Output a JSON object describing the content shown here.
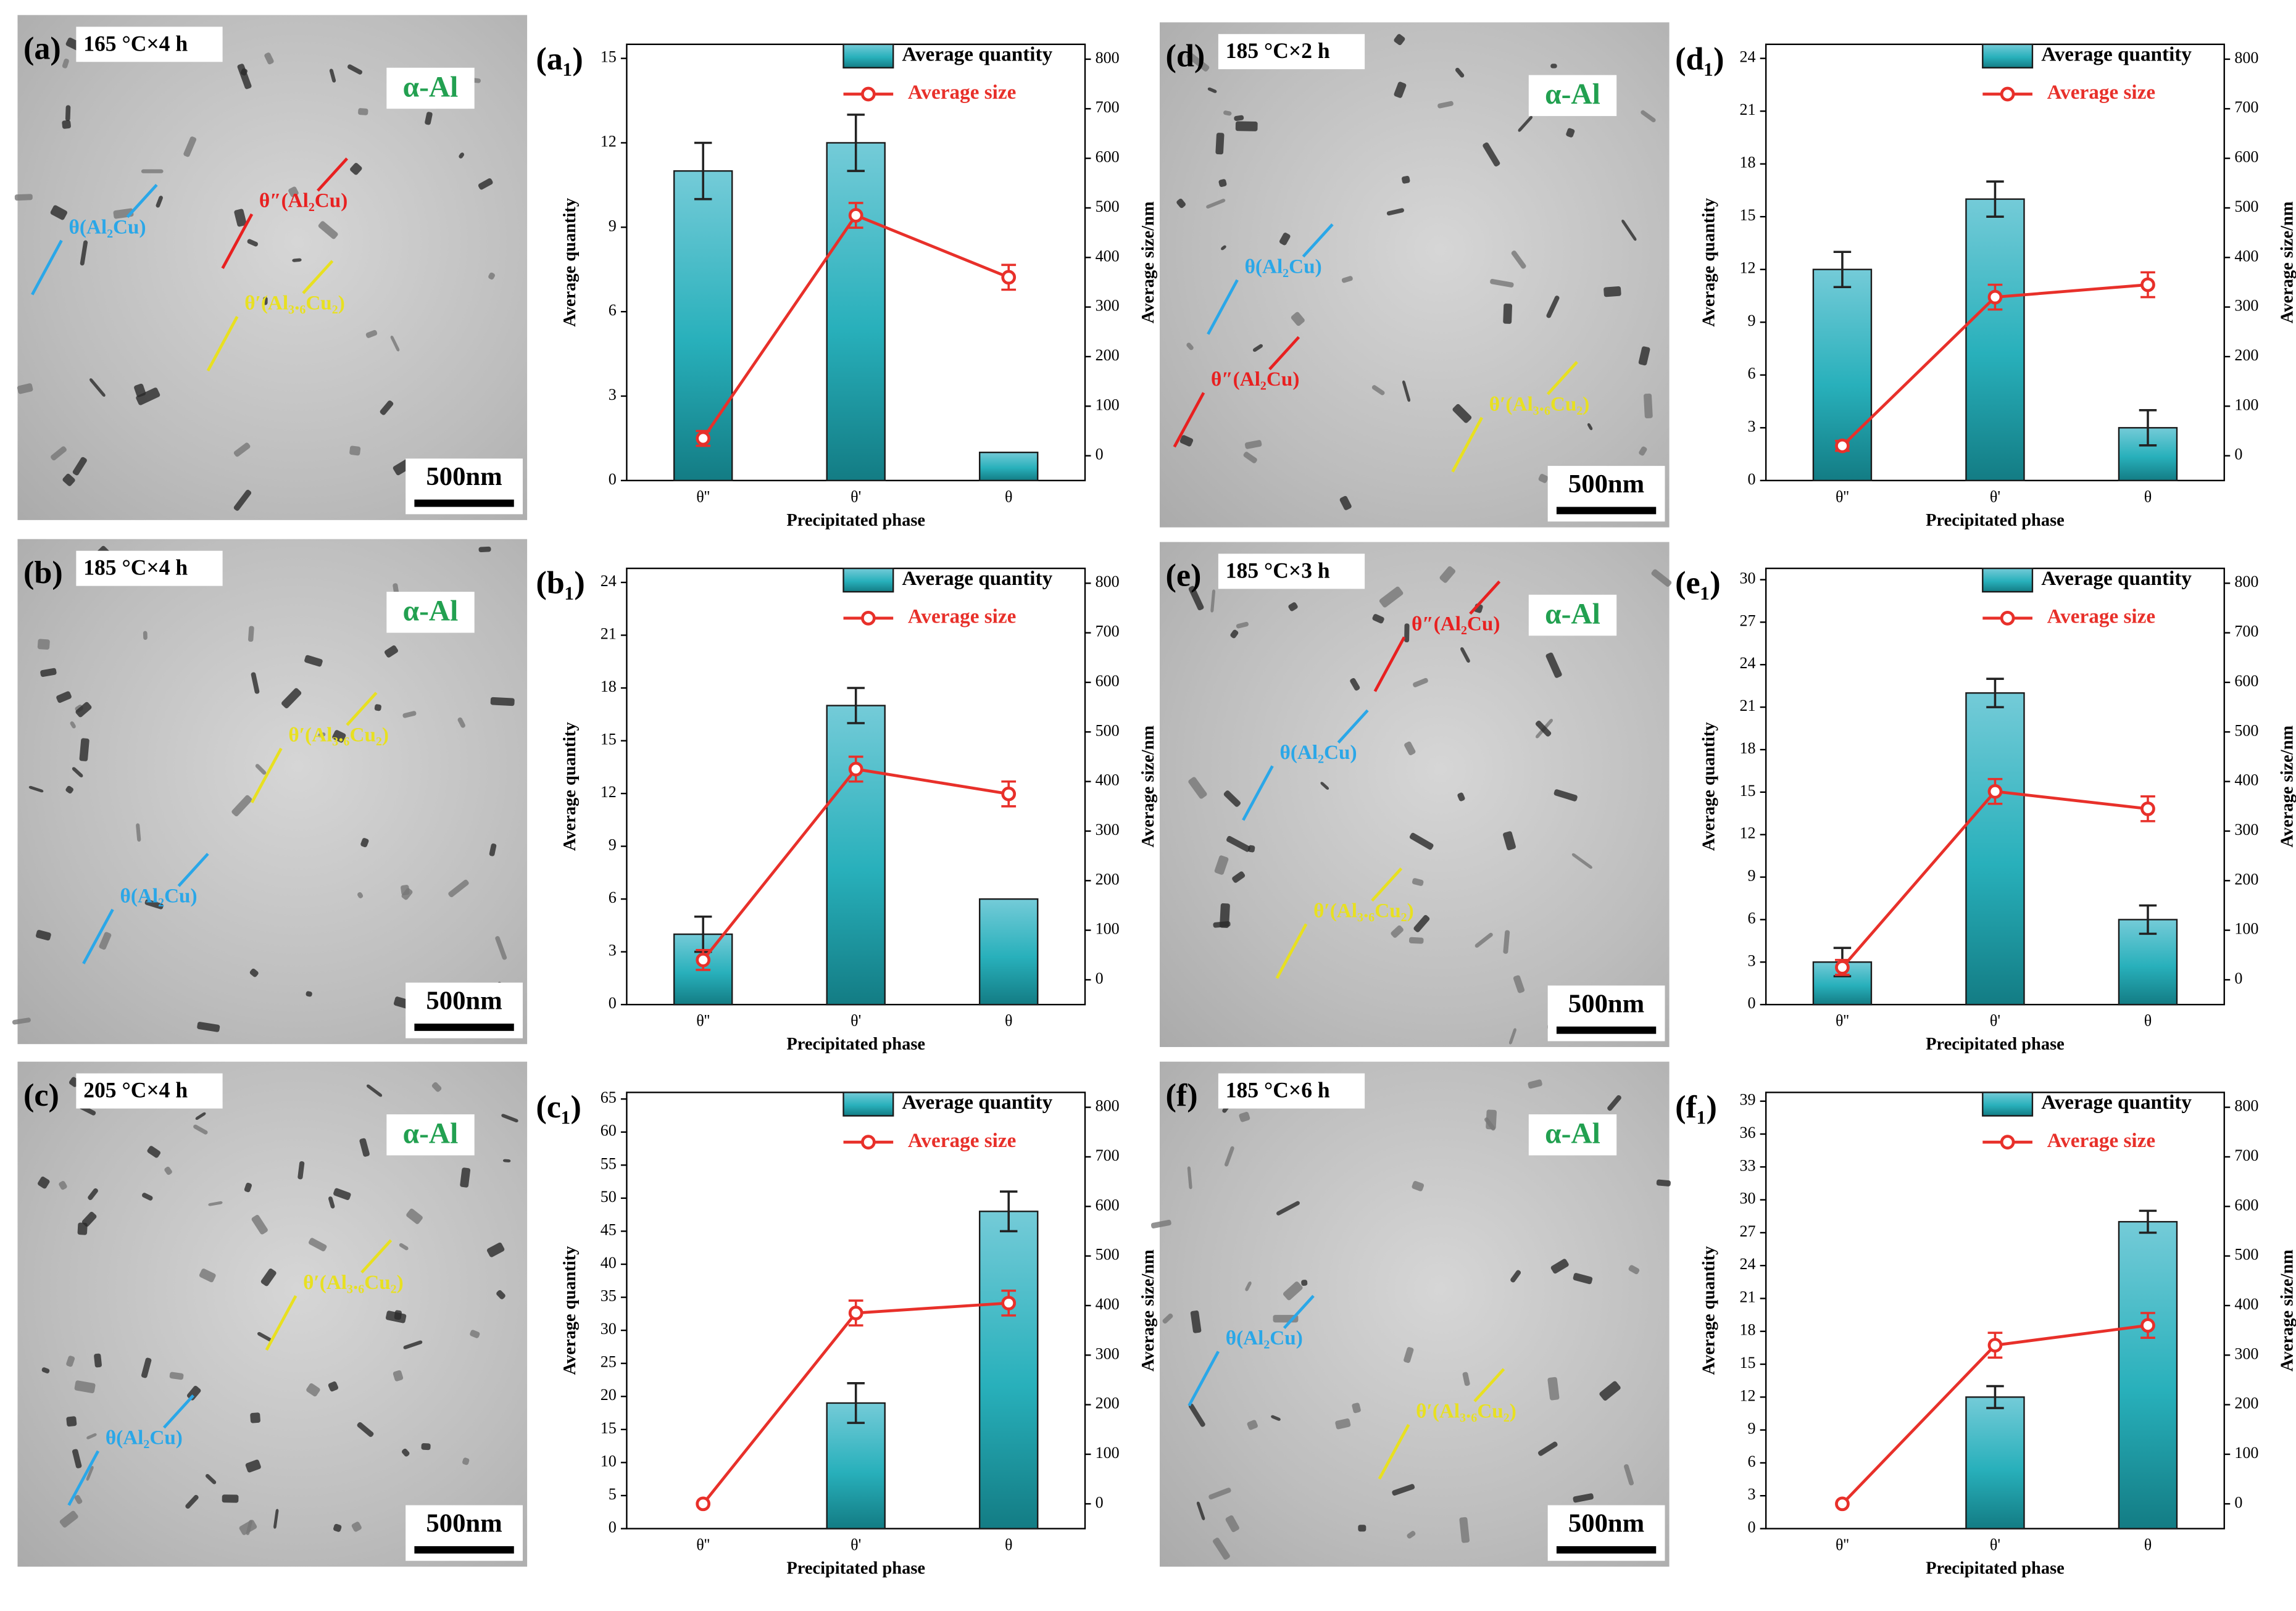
{
  "micrographs": [
    {
      "label": "(a)",
      "condition": "165 °C×4 h",
      "matrix": "α-Al",
      "scale": "500nm",
      "annotations": [
        "θ″(Al₂Cu)",
        "θ(Al₂Cu)",
        "θ′(Al₃.₆Cu₂)"
      ]
    },
    {
      "label": "(b)",
      "condition": "185 °C×4 h",
      "matrix": "α-Al",
      "scale": "500nm",
      "annotations": [
        "θ′(Al₃.₆Cu₂)",
        "θ(Al₂Cu)"
      ]
    },
    {
      "label": "(c)",
      "condition": "205 °C×4 h",
      "matrix": "α-Al",
      "scale": "500nm",
      "annotations": [
        "θ′(Al₃.₆Cu₂)",
        "θ(Al₂Cu)"
      ]
    },
    {
      "label": "(d)",
      "condition": "185 °C×2 h",
      "matrix": "α-Al",
      "scale": "500nm",
      "annotations": [
        "θ(Al₂Cu)",
        "θ″(Al₂Cu)",
        "θ′(Al₃.₆Cu₂)"
      ]
    },
    {
      "label": "(e)",
      "condition": "185 °C×3 h",
      "matrix": "α-Al",
      "scale": "500nm",
      "annotations": [
        "θ″(Al₂Cu)",
        "θ(Al₂Cu)",
        "θ′(Al₃.₆Cu₂)"
      ]
    },
    {
      "label": "(f)",
      "condition": "185 °C×6 h",
      "matrix": "α-Al",
      "scale": "500nm",
      "annotations": [
        "θ(Al₂Cu)",
        "θ′(Al₃.₆Cu₂)"
      ]
    }
  ],
  "chart_data": [
    {
      "type": "combo",
      "label": "(a₁)",
      "categories": [
        "θ''",
        "θ'",
        "θ"
      ],
      "x_label": "Precipitated phase",
      "y_label": "Average quantity",
      "y2_label": "Average size/nm",
      "ylim": [
        0,
        15.5
      ],
      "yticks": [
        0,
        3,
        6,
        9,
        12,
        15
      ],
      "y2lim": [
        -50,
        830
      ],
      "y2ticks": [
        0,
        100,
        200,
        300,
        400,
        500,
        600,
        700,
        800
      ],
      "series": [
        {
          "name": "Average quantity",
          "color": "#2aa6b0",
          "values": [
            11,
            12,
            1
          ],
          "errors": [
            1,
            1,
            0
          ]
        },
        {
          "name": "Average size",
          "color": "#e8302a",
          "axis": "y2",
          "values": [
            35,
            485,
            360
          ],
          "errors": [
            15,
            25,
            25
          ]
        }
      ]
    },
    {
      "type": "combo",
      "label": "(b₁)",
      "categories": [
        "θ''",
        "θ'",
        "θ"
      ],
      "x_label": "Precipitated phase",
      "y_label": "Average quantity",
      "y2_label": "Average size/nm",
      "ylim": [
        0,
        24.8
      ],
      "yticks": [
        0,
        3,
        6,
        9,
        12,
        15,
        18,
        21,
        24
      ],
      "y2lim": [
        -50,
        830
      ],
      "y2ticks": [
        0,
        100,
        200,
        300,
        400,
        500,
        600,
        700,
        800
      ],
      "series": [
        {
          "name": "Average quantity",
          "color": "#2aa6b0",
          "values": [
            4,
            17,
            6
          ],
          "errors": [
            1,
            1,
            0
          ]
        },
        {
          "name": "Average size",
          "color": "#e8302a",
          "axis": "y2",
          "values": [
            40,
            425,
            375
          ],
          "errors": [
            20,
            25,
            25
          ]
        }
      ]
    },
    {
      "type": "combo",
      "label": "(c₁)",
      "categories": [
        "θ''",
        "θ'",
        "θ"
      ],
      "x_label": "Precipitated phase",
      "y_label": "Average quantity",
      "y2_label": "Average size/nm",
      "ylim": [
        0,
        66
      ],
      "yticks": [
        0,
        5,
        10,
        15,
        20,
        25,
        30,
        35,
        40,
        45,
        50,
        55,
        60,
        65
      ],
      "y2lim": [
        -50,
        830
      ],
      "y2ticks": [
        0,
        100,
        200,
        300,
        400,
        500,
        600,
        700,
        800
      ],
      "series": [
        {
          "name": "Average quantity",
          "color": "#2aa6b0",
          "values": [
            null,
            19,
            48
          ],
          "errors": [
            null,
            3,
            3
          ]
        },
        {
          "name": "Average size",
          "color": "#e8302a",
          "axis": "y2",
          "values": [
            0,
            385,
            405
          ],
          "errors": [
            0,
            25,
            25
          ]
        }
      ]
    },
    {
      "type": "combo",
      "label": "(d₁)",
      "categories": [
        "θ''",
        "θ'",
        "θ"
      ],
      "x_label": "Precipitated phase",
      "y_label": "Average quantity",
      "y2_label": "Average size/nm",
      "ylim": [
        0,
        24.8
      ],
      "yticks": [
        0,
        3,
        6,
        9,
        12,
        15,
        18,
        21,
        24
      ],
      "y2lim": [
        -50,
        830
      ],
      "y2ticks": [
        0,
        100,
        200,
        300,
        400,
        500,
        600,
        700,
        800
      ],
      "series": [
        {
          "name": "Average quantity",
          "color": "#2aa6b0",
          "values": [
            12,
            16,
            3
          ],
          "errors": [
            1,
            1,
            1
          ]
        },
        {
          "name": "Average size",
          "color": "#e8302a",
          "axis": "y2",
          "values": [
            20,
            320,
            345
          ],
          "errors": [
            10,
            25,
            25
          ]
        }
      ]
    },
    {
      "type": "combo",
      "label": "(e₁)",
      "categories": [
        "θ''",
        "θ'",
        "θ"
      ],
      "x_label": "Precipitated phase",
      "y_label": "Average quantity",
      "y2_label": "Average size/nm",
      "ylim": [
        0,
        30.8
      ],
      "yticks": [
        0,
        3,
        6,
        9,
        12,
        15,
        18,
        21,
        24,
        27,
        30
      ],
      "y2lim": [
        -50,
        830
      ],
      "y2ticks": [
        0,
        100,
        200,
        300,
        400,
        500,
        600,
        700,
        800
      ],
      "series": [
        {
          "name": "Average quantity",
          "color": "#2aa6b0",
          "values": [
            3,
            22,
            6
          ],
          "errors": [
            1,
            1,
            1
          ]
        },
        {
          "name": "Average size",
          "color": "#e8302a",
          "axis": "y2",
          "values": [
            25,
            380,
            345
          ],
          "errors": [
            15,
            25,
            25
          ]
        }
      ]
    },
    {
      "type": "combo",
      "label": "(f₁)",
      "categories": [
        "θ''",
        "θ'",
        "θ"
      ],
      "x_label": "Precipitated phase",
      "y_label": "Average quantity",
      "y2_label": "Average size/nm",
      "ylim": [
        0,
        39.8
      ],
      "yticks": [
        0,
        3,
        6,
        9,
        12,
        15,
        18,
        21,
        24,
        27,
        30,
        33,
        36,
        39
      ],
      "y2lim": [
        -50,
        830
      ],
      "y2ticks": [
        0,
        100,
        200,
        300,
        400,
        500,
        600,
        700,
        800
      ],
      "series": [
        {
          "name": "Average quantity",
          "color": "#2aa6b0",
          "values": [
            null,
            12,
            28
          ],
          "errors": [
            null,
            1,
            1
          ]
        },
        {
          "name": "Average size",
          "color": "#e8302a",
          "axis": "y2",
          "values": [
            0,
            320,
            360
          ],
          "errors": [
            0,
            25,
            25
          ]
        }
      ]
    }
  ]
}
